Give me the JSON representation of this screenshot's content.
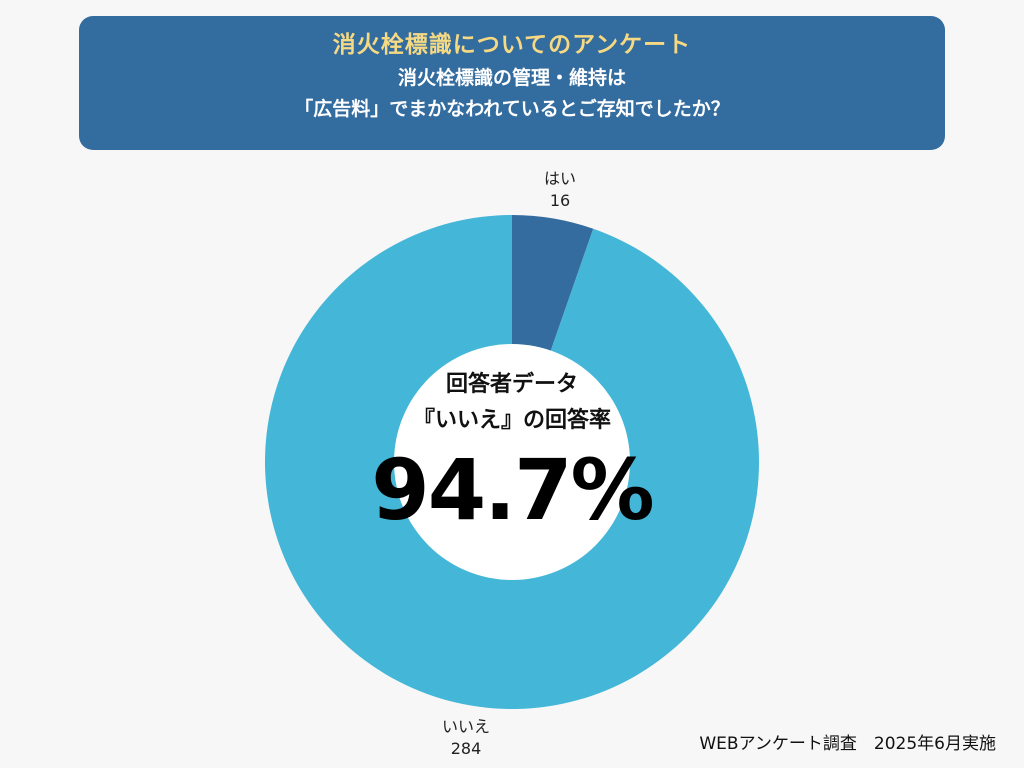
{
  "header": {
    "title": "消火栓標識についてのアンケート",
    "question_line1": "消火栓標識の管理・維持は",
    "question_line2": "「広告料」でまかなわれているとご存知でしたか？"
  },
  "chart_data": {
    "type": "pie",
    "donut": true,
    "categories": [
      "はい",
      "いいえ"
    ],
    "values": [
      16,
      284
    ],
    "colors": [
      "#356ca0",
      "#44b6d8"
    ],
    "labels": [
      {
        "name": "はい",
        "value": "16"
      },
      {
        "name": "いいえ",
        "value": "284"
      }
    ],
    "center": {
      "line1": "回答者データ",
      "line2": "『いいえ』の回答率",
      "value": "94.7%"
    }
  },
  "footer": {
    "note": "WEBアンケート調査　2025年6月実施"
  },
  "colors": {
    "header_bg": "#336c9f",
    "title_yellow": "#f6d983",
    "background": "#f7f7f7"
  }
}
